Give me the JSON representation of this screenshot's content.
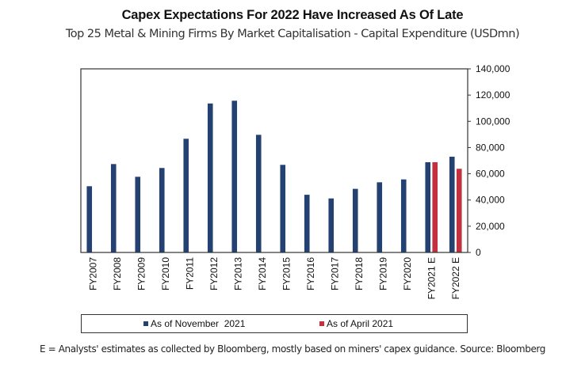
{
  "chart_data": {
    "type": "bar",
    "title": "Capex Expectations For 2022 Have Increased As Of Late",
    "subtitle": "Top 25 Metal & Mining Firms By Market Capitalisation - Capital Expenditure (USDmn)",
    "xlabel": "",
    "ylabel": "",
    "ylim": [
      0,
      140000
    ],
    "yticks": [
      0,
      20000,
      40000,
      60000,
      80000,
      100000,
      120000,
      140000
    ],
    "ytick_labels": [
      "0",
      "20,000",
      "40,000",
      "60,000",
      "80,000",
      "100,000",
      "120,000",
      "140,000"
    ],
    "y_axis_side": "right",
    "grid": false,
    "categories": [
      "FY2007",
      "FY2008",
      "FY2009",
      "FY2010",
      "FY2011",
      "FY2012",
      "FY2013",
      "FY2014",
      "FY2015",
      "FY2016",
      "FY2017",
      "FY2018",
      "FY2019",
      "FY2020",
      "FY2021 E",
      "FY2022 E"
    ],
    "series": [
      {
        "name": "As of November  2021",
        "color": "#234272",
        "values": [
          50500,
          67400,
          57700,
          64400,
          86700,
          113600,
          115700,
          89700,
          66800,
          44000,
          41200,
          48500,
          53500,
          55700,
          68800,
          73000
        ]
      },
      {
        "name": "As of April 2021",
        "color": "#c3303e",
        "values": [
          null,
          null,
          null,
          null,
          null,
          null,
          null,
          null,
          null,
          null,
          null,
          null,
          null,
          null,
          68800,
          63800
        ]
      }
    ],
    "legend_position": "bottom",
    "footnote": "E = Analysts' estimates as collected by Bloomberg, mostly based on miners' capex guidance. Source: Bloomberg"
  }
}
